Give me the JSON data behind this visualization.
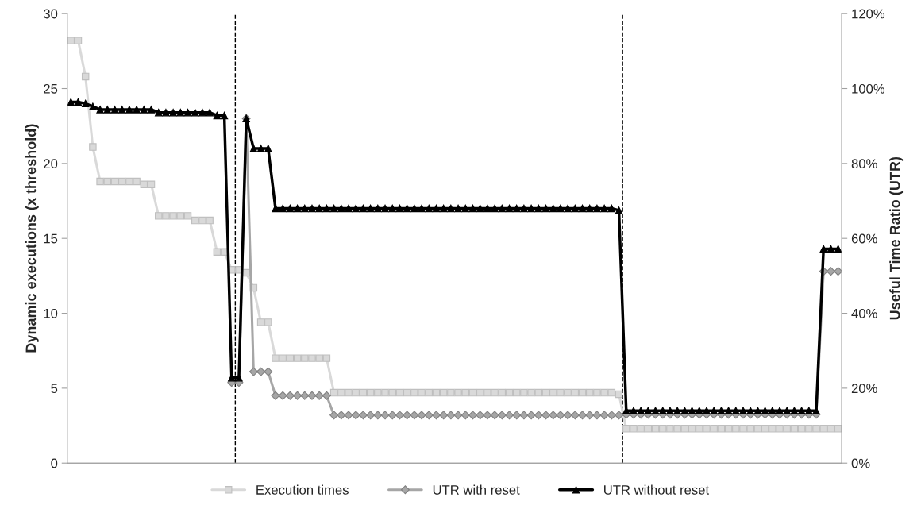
{
  "chart_data": {
    "type": "line",
    "ylabel": "Dynamic executions (x threshold)",
    "y2label": "Useful Time Ratio (UTR)",
    "categories": [
      null,
      null,
      null,
      null,
      null,
      null,
      null,
      null,
      null,
      null,
      null,
      null,
      null,
      null,
      null,
      null,
      null,
      null,
      null,
      null,
      null,
      null,
      null,
      null,
      null,
      null,
      null,
      null,
      null,
      null,
      null,
      null,
      null,
      null,
      null,
      null,
      null,
      null,
      null,
      null,
      null,
      null,
      null,
      null,
      null,
      null,
      null,
      null,
      null,
      null,
      null,
      null,
      null,
      null,
      null,
      null,
      null,
      null,
      null,
      null,
      null,
      null,
      null,
      null,
      null,
      null,
      null,
      null,
      null,
      null,
      null,
      null,
      null,
      null,
      null,
      null,
      null,
      null,
      null,
      null,
      null,
      null,
      null,
      null,
      null,
      null,
      null,
      null,
      null,
      null,
      null,
      null,
      null,
      null,
      null,
      null,
      null,
      null,
      null,
      null,
      null,
      null,
      null,
      null,
      null,
      null
    ],
    "ylim": [
      0,
      30
    ],
    "yticks": [
      0,
      5,
      10,
      15,
      20,
      25,
      30
    ],
    "y2lim": [
      0,
      120
    ],
    "y2ticks": [
      {
        "value": 0,
        "label": "0%"
      },
      {
        "value": 20,
        "label": "20%"
      },
      {
        "value": 40,
        "label": "40%"
      },
      {
        "value": 60,
        "label": "60%"
      },
      {
        "value": 80,
        "label": "80%"
      },
      {
        "value": 100,
        "label": "100%"
      },
      {
        "value": 120,
        "label": "120%"
      }
    ],
    "grid": false,
    "legend": "bottom",
    "series": [
      {
        "name": "Execution times",
        "color": "#d9d9d9",
        "marker": "square",
        "values": [
          28.2,
          28.2,
          25.8,
          21.1,
          18.8,
          18.8,
          18.8,
          18.8,
          18.8,
          18.8,
          18.6,
          18.6,
          16.5,
          16.5,
          16.5,
          16.5,
          16.5,
          16.2,
          16.2,
          16.2,
          14.1,
          14.1,
          12.9,
          12.9,
          12.7,
          11.7,
          9.4,
          9.4,
          7.0,
          7.0,
          7.0,
          7.0,
          7.0,
          7.0,
          7.0,
          7.0,
          4.7,
          4.7,
          4.7,
          4.7,
          4.7,
          4.7,
          4.7,
          4.7,
          4.7,
          4.7,
          4.7,
          4.7,
          4.7,
          4.7,
          4.7,
          4.7,
          4.7,
          4.7,
          4.7,
          4.7,
          4.7,
          4.7,
          4.7,
          4.7,
          4.7,
          4.7,
          4.7,
          4.7,
          4.7,
          4.7,
          4.7,
          4.7,
          4.7,
          4.7,
          4.7,
          4.7,
          4.7,
          4.7,
          4.7,
          4.6,
          2.3,
          2.3,
          2.3,
          2.3,
          2.3,
          2.3,
          2.3,
          2.3,
          2.3,
          2.3,
          2.3,
          2.3,
          2.3,
          2.3,
          2.3,
          2.3,
          2.3,
          2.3,
          2.3,
          2.3,
          2.3,
          2.3,
          2.3,
          2.3,
          2.3,
          2.3,
          2.3,
          2.3,
          2.3,
          2.3
        ]
      },
      {
        "name": "UTR with reset",
        "color": "#a6a6a6",
        "marker": "diamond",
        "axis": "y2",
        "values": [
          null,
          null,
          null,
          null,
          null,
          null,
          null,
          null,
          null,
          null,
          null,
          null,
          null,
          null,
          null,
          null,
          null,
          null,
          null,
          null,
          null,
          null,
          21.5,
          21.5,
          92.0,
          24.4,
          24.4,
          24.4,
          18.0,
          18.0,
          18.0,
          18.0,
          18.0,
          18.0,
          18.0,
          18.0,
          12.8,
          12.8,
          12.8,
          12.8,
          12.8,
          12.8,
          12.8,
          12.8,
          12.8,
          12.8,
          12.8,
          12.8,
          12.8,
          12.8,
          12.8,
          12.8,
          12.8,
          12.8,
          12.8,
          12.8,
          12.8,
          12.8,
          12.8,
          12.8,
          12.8,
          12.8,
          12.8,
          12.8,
          12.8,
          12.8,
          12.8,
          12.8,
          12.8,
          12.8,
          12.8,
          12.8,
          12.8,
          12.8,
          12.8,
          12.8,
          13.0,
          13.0,
          13.0,
          13.0,
          13.0,
          13.0,
          13.0,
          13.0,
          13.0,
          13.0,
          13.0,
          13.0,
          13.0,
          13.0,
          13.0,
          13.0,
          13.0,
          13.0,
          13.0,
          13.0,
          13.0,
          13.0,
          13.0,
          13.0,
          13.0,
          13.0,
          13.0,
          51.2,
          51.2,
          51.2
        ]
      },
      {
        "name": "UTR without reset",
        "color": "#000000",
        "marker": "triangle",
        "axis": "y2",
        "values": [
          96.4,
          96.4,
          96.0,
          95.2,
          94.4,
          94.4,
          94.4,
          94.4,
          94.4,
          94.4,
          94.4,
          94.4,
          93.6,
          93.6,
          93.6,
          93.6,
          93.6,
          93.6,
          93.6,
          93.6,
          92.8,
          92.8,
          22.8,
          22.8,
          92.0,
          84.0,
          84.0,
          84.0,
          68.0,
          68.0,
          68.0,
          68.0,
          68.0,
          68.0,
          68.0,
          68.0,
          68.0,
          68.0,
          68.0,
          68.0,
          68.0,
          68.0,
          68.0,
          68.0,
          68.0,
          68.0,
          68.0,
          68.0,
          68.0,
          68.0,
          68.0,
          68.0,
          68.0,
          68.0,
          68.0,
          68.0,
          68.0,
          68.0,
          68.0,
          68.0,
          68.0,
          68.0,
          68.0,
          68.0,
          68.0,
          68.0,
          68.0,
          68.0,
          68.0,
          68.0,
          68.0,
          68.0,
          68.0,
          68.0,
          68.0,
          67.5,
          14.0,
          14.0,
          14.0,
          14.0,
          14.0,
          14.0,
          14.0,
          14.0,
          14.0,
          14.0,
          14.0,
          14.0,
          14.0,
          14.0,
          14.0,
          14.0,
          14.0,
          14.0,
          14.0,
          14.0,
          14.0,
          14.0,
          14.0,
          14.0,
          14.0,
          14.0,
          14.0,
          57.2,
          57.2,
          57.2
        ]
      }
    ]
  }
}
